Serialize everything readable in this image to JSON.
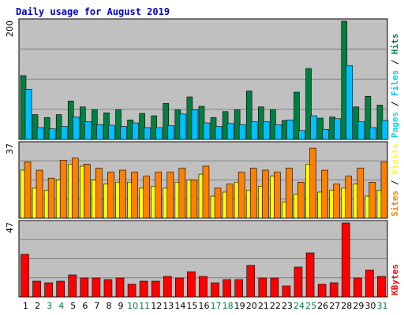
{
  "title": "Daily usage for August 2019",
  "colors": {
    "background": "#c0c0c0",
    "grid": "#808080",
    "hits": "#008040",
    "files": "#00c0ff",
    "pages": "#00e0e0",
    "visits": "#ffff00",
    "sites": "#ff8000",
    "kbytes": "#ff0000",
    "title": "#0000cc",
    "weekday_label": "#000000",
    "weekend_label": "#008040"
  },
  "chart_data": [
    {
      "type": "bar",
      "name": "hits-files-pages",
      "ymax": 200,
      "ymax_label": "200",
      "legend": [
        "Pages",
        "/",
        "Files",
        "/",
        "Hits"
      ],
      "series": [
        {
          "name": "Hits",
          "values": [
            108,
            42,
            37,
            42,
            65,
            55,
            50,
            45,
            50,
            33,
            44,
            40,
            61,
            50,
            72,
            56,
            37,
            47,
            50,
            82,
            55,
            50,
            32,
            80,
            120,
            36,
            38,
            200,
            55,
            73,
            58
          ]
        },
        {
          "name": "Files",
          "values": [
            85,
            20,
            18,
            22,
            38,
            30,
            25,
            24,
            22,
            28,
            20,
            20,
            23,
            43,
            50,
            28,
            22,
            27,
            25,
            30,
            30,
            25,
            33,
            15,
            40,
            17,
            35,
            125,
            30,
            20,
            32
          ]
        },
        {
          "name": "Pages",
          "values": [
            0,
            0,
            0,
            0,
            0,
            0,
            0,
            0,
            0,
            0,
            0,
            0,
            0,
            0,
            0,
            0,
            0,
            0,
            0,
            0,
            0,
            0,
            0,
            0,
            0,
            0,
            0,
            0,
            0,
            0,
            0
          ]
        }
      ]
    },
    {
      "type": "bar",
      "name": "sites-visits",
      "ymax": 37,
      "ymax_label": "37",
      "legend": [
        "Sites",
        "/",
        "Visits"
      ],
      "series": [
        {
          "name": "Visits",
          "values": [
            24,
            15,
            14,
            19,
            27,
            26,
            19,
            17,
            18,
            18,
            15,
            16,
            15,
            18,
            19,
            22,
            11,
            13,
            18,
            14,
            16,
            21,
            8,
            12,
            27,
            13,
            14,
            15,
            17,
            11,
            14
          ]
        },
        {
          "name": "Sites",
          "values": [
            28,
            24,
            20,
            29,
            30,
            27,
            25,
            23,
            24,
            23,
            21,
            23,
            23,
            25,
            19,
            26,
            15,
            17,
            23,
            25,
            24,
            23,
            25,
            18,
            35,
            24,
            17,
            21,
            25,
            18,
            28
          ]
        }
      ]
    },
    {
      "type": "bar",
      "name": "kbytes",
      "ymax": 47,
      "ymax_label": "47",
      "legend": [
        "KBytes"
      ],
      "series": [
        {
          "name": "KBytes",
          "values": [
            27,
            10,
            9,
            10,
            14,
            12,
            12,
            11,
            12,
            8,
            10,
            10,
            13,
            12,
            16,
            13,
            9,
            11,
            11,
            20,
            12,
            12,
            7,
            19,
            28,
            8,
            9,
            47,
            12,
            17,
            13
          ]
        }
      ]
    }
  ],
  "days": [
    "1",
    "2",
    "3",
    "4",
    "5",
    "6",
    "7",
    "8",
    "9",
    "10",
    "11",
    "12",
    "13",
    "14",
    "15",
    "16",
    "17",
    "18",
    "19",
    "20",
    "21",
    "22",
    "23",
    "24",
    "25",
    "26",
    "27",
    "28",
    "29",
    "30",
    "31"
  ],
  "weekend_days": [
    3,
    4,
    10,
    11,
    17,
    18,
    24,
    25,
    31
  ]
}
